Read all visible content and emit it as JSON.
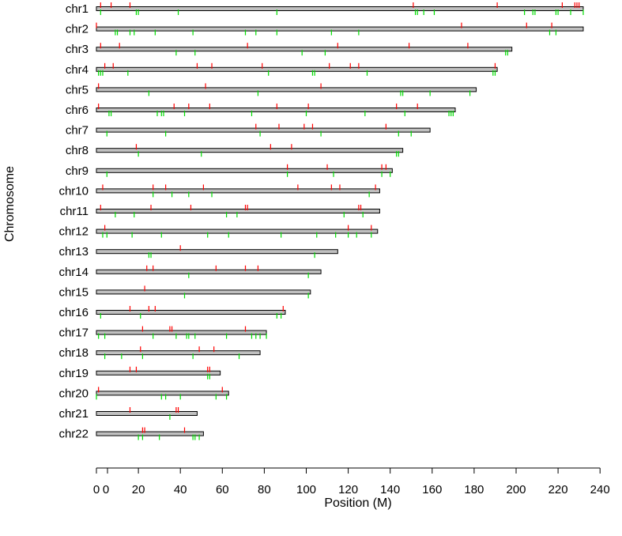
{
  "chart_data": {
    "type": "chromosome-ideogram",
    "title": "",
    "xlabel": "Position (M)",
    "ylabel": "Chromosome",
    "xlim": [
      0,
      245
    ],
    "x_ticks": [
      0,
      20,
      40,
      60,
      80,
      100,
      120,
      140,
      160,
      180,
      200,
      220,
      240
    ],
    "extra_tick_labels": [
      {
        "x": 0,
        "label": "0"
      }
    ],
    "colors": {
      "bar_fill": "#c0c0c0",
      "bar_stroke": "#000000",
      "up_marker": "#ff0000",
      "down_marker": "#00dd00",
      "axis": "#000000"
    },
    "chromosomes": [
      {
        "name": "chr1",
        "length": 232,
        "up": [
          2,
          7,
          16,
          151,
          191,
          222,
          228,
          229,
          230
        ],
        "down": [
          2,
          19,
          20,
          39,
          86,
          152,
          153,
          156,
          161,
          204,
          208,
          209,
          219,
          220,
          226,
          232
        ]
      },
      {
        "name": "chr2",
        "length": 232,
        "up": [
          0,
          174,
          205,
          217
        ],
        "down": [
          9,
          10,
          16,
          18,
          28,
          46,
          71,
          76,
          86,
          112,
          125,
          216,
          219
        ]
      },
      {
        "name": "chr3",
        "length": 198,
        "up": [
          2,
          11,
          72,
          115,
          149,
          177
        ],
        "down": [
          38,
          47,
          98,
          109,
          195,
          196
        ]
      },
      {
        "name": "chr4",
        "length": 191,
        "up": [
          4,
          8,
          48,
          55,
          79,
          111,
          121,
          125,
          190
        ],
        "down": [
          1,
          2,
          3,
          15,
          82,
          103,
          104,
          129,
          189,
          190
        ]
      },
      {
        "name": "chr5",
        "length": 181,
        "up": [
          1,
          52,
          107
        ],
        "down": [
          25,
          77,
          145,
          146,
          159,
          178
        ]
      },
      {
        "name": "chr6",
        "length": 171,
        "up": [
          1,
          37,
          44,
          54,
          86,
          101,
          143,
          153
        ],
        "down": [
          6,
          7,
          29,
          31,
          32,
          42,
          74,
          100,
          128,
          147,
          168,
          169,
          170
        ]
      },
      {
        "name": "chr7",
        "length": 159,
        "up": [
          76,
          87,
          99,
          103,
          138
        ],
        "down": [
          5,
          33,
          78,
          107,
          144,
          150
        ]
      },
      {
        "name": "chr8",
        "length": 146,
        "up": [
          19,
          83,
          93
        ],
        "down": [
          20,
          50,
          143,
          144
        ]
      },
      {
        "name": "chr9",
        "length": 141,
        "up": [
          91,
          110,
          136,
          138
        ],
        "down": [
          5,
          91,
          113,
          136,
          140
        ]
      },
      {
        "name": "chr10",
        "length": 135,
        "up": [
          3,
          27,
          33,
          51,
          96,
          112,
          116,
          133
        ],
        "down": [
          27,
          36,
          44,
          55,
          130
        ]
      },
      {
        "name": "chr11",
        "length": 135,
        "up": [
          2,
          26,
          45,
          71,
          72,
          125,
          126
        ],
        "down": [
          9,
          18,
          62,
          67,
          118,
          127
        ]
      },
      {
        "name": "chr12",
        "length": 134,
        "up": [
          4,
          120,
          131
        ],
        "down": [
          3,
          5,
          17,
          31,
          53,
          63,
          88,
          105,
          114,
          120,
          124,
          131
        ]
      },
      {
        "name": "chr13",
        "length": 115,
        "up": [
          40
        ],
        "down": [
          25,
          26,
          104
        ]
      },
      {
        "name": "chr14",
        "length": 107,
        "up": [
          24,
          27,
          57,
          71,
          77
        ],
        "down": [
          44,
          101
        ]
      },
      {
        "name": "chr15",
        "length": 102,
        "up": [
          23
        ],
        "down": [
          42,
          101
        ]
      },
      {
        "name": "chr16",
        "length": 90,
        "up": [
          16,
          25,
          28,
          89
        ],
        "down": [
          2,
          21,
          86,
          88
        ]
      },
      {
        "name": "chr17",
        "length": 81,
        "up": [
          22,
          35,
          36,
          71
        ],
        "down": [
          1,
          4,
          27,
          38,
          43,
          44,
          47,
          62,
          74,
          76,
          78,
          81
        ]
      },
      {
        "name": "chr18",
        "length": 78,
        "up": [
          21,
          49,
          56
        ],
        "down": [
          4,
          12,
          22,
          46,
          68
        ]
      },
      {
        "name": "chr19",
        "length": 59,
        "up": [
          16,
          19,
          53,
          54
        ],
        "down": [
          53,
          54
        ]
      },
      {
        "name": "chr20",
        "length": 63,
        "up": [
          1,
          60
        ],
        "down": [
          0,
          31,
          33,
          40,
          57,
          62
        ]
      },
      {
        "name": "chr21",
        "length": 48,
        "up": [
          16,
          38,
          39
        ],
        "down": [
          35
        ]
      },
      {
        "name": "chr22",
        "length": 51,
        "up": [
          22,
          23,
          42
        ],
        "down": [
          20,
          22,
          30,
          46,
          47,
          49
        ]
      }
    ]
  }
}
